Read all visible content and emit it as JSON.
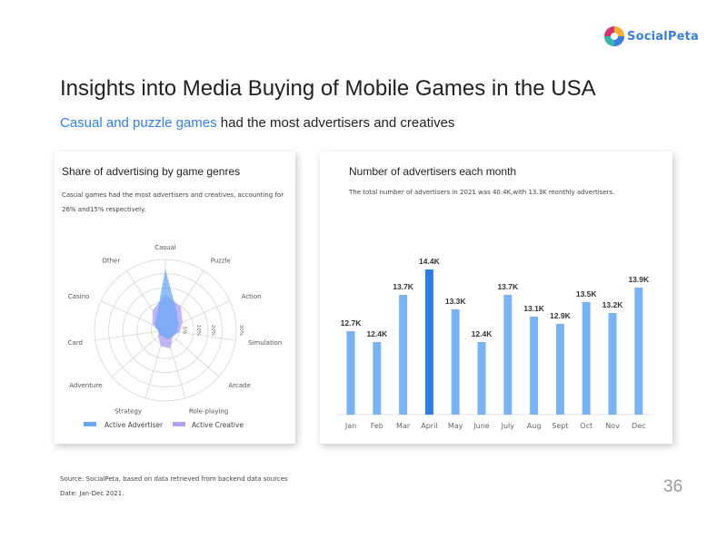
{
  "brand": {
    "name": "SocialPeta"
  },
  "header": {
    "title": "Insights into Media Buying of Mobile Games in the USA",
    "subtitle_highlight": "Casual and puzzle games",
    "subtitle_rest": " had the most advertisers and creatives"
  },
  "left_panel": {
    "title": "Share of advertising by game genres",
    "description": "Casual games had the most advertisers and creatives, accounting for 26% and15% respectively."
  },
  "right_panel": {
    "title": "Number of advertisers each month",
    "description": "The total number of advertisers in 2021 was 40.4K,with 13.3K monthly advertisers."
  },
  "footer": {
    "source": "Source: SocialPeta, based on data retrieved from backend data sources",
    "date": "Date: Jan-Dec 2021."
  },
  "page_number": "36",
  "colors": {
    "accent": "#2f80ed",
    "bar": "#7ab3f5",
    "bar_highlight": "#2f7de1",
    "advertiser": "#6aa8f7",
    "creative": "#b3a2f3"
  },
  "chart_data": [
    {
      "type": "radar",
      "categories": [
        "Casual",
        "Puzzle",
        "Action",
        "Simulation",
        "Arcade",
        "Role-playing",
        "Strategy",
        "Adventure",
        "Card",
        "Casino",
        "Other"
      ],
      "radial_ticks": [
        "5%",
        "10%",
        "20%",
        "30%"
      ],
      "rmax": 30,
      "series": [
        {
          "name": "Active Advertiser",
          "color": "#6aa8f7",
          "values": [
            26,
            9,
            6,
            5,
            4,
            4,
            3,
            3,
            3,
            5,
            7
          ]
        },
        {
          "name": "Active Creative",
          "color": "#b3a2f3",
          "values": [
            15,
            12,
            8,
            6,
            4,
            8,
            7,
            4,
            3,
            6,
            10
          ]
        }
      ],
      "legend": "bottom"
    },
    {
      "type": "bar",
      "categories": [
        "Jan",
        "Feb",
        "Mar",
        "April",
        "May",
        "June",
        "July",
        "Aug",
        "Sept",
        "Oct",
        "Nov",
        "Dec"
      ],
      "values": [
        12.7,
        12.4,
        13.7,
        14.4,
        13.3,
        12.4,
        13.7,
        13.1,
        12.9,
        13.5,
        13.2,
        13.9
      ],
      "labels": [
        "12.7K",
        "12.4K",
        "13.7K",
        "14.4K",
        "13.3K",
        "12.4K",
        "13.7K",
        "13.1K",
        "12.9K",
        "13.5K",
        "13.2K",
        "13.9K"
      ],
      "highlight_index": 3,
      "unit": "K"
    }
  ]
}
